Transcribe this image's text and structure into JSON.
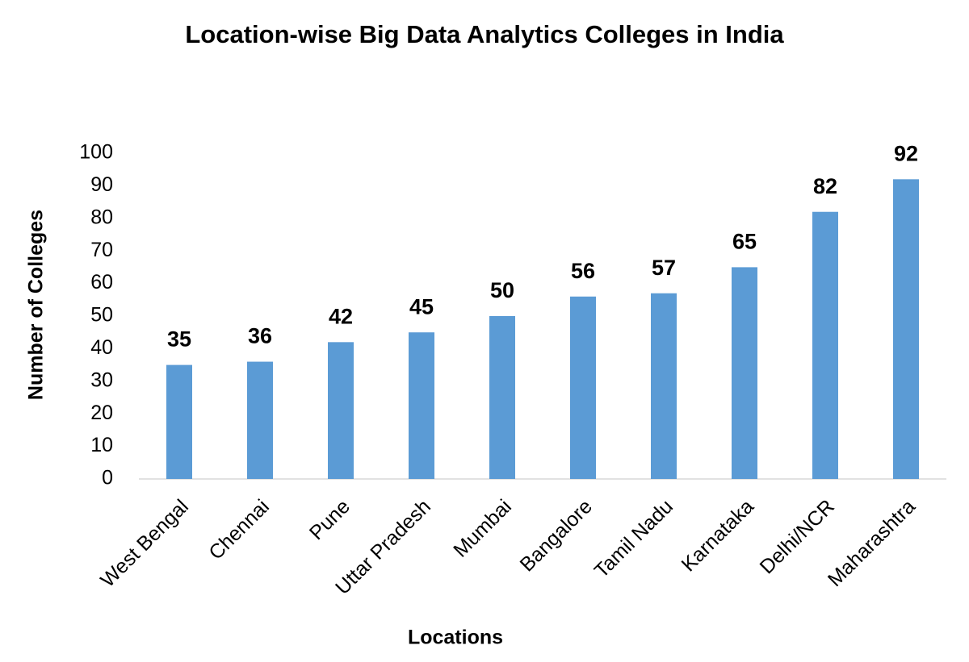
{
  "chart_data": {
    "type": "bar",
    "title": "Location-wise Big Data Analytics Colleges in India",
    "x_label": "Locations",
    "y_label": "Number of Colleges",
    "categories": [
      "West Bengal",
      "Chennai",
      "Pune",
      "Uttar Pradesh",
      "Mumbai",
      "Bangalore",
      "Tamil Nadu",
      "Karnataka",
      "Delhi/NCR",
      "Maharashtra"
    ],
    "values": [
      35,
      36,
      42,
      45,
      50,
      56,
      57,
      65,
      82,
      92
    ],
    "color": "#5b9bd5",
    "ylim": [
      0,
      100
    ],
    "yticks": [
      0,
      10,
      20,
      30,
      40,
      50,
      60,
      70,
      80,
      90,
      100
    ],
    "grid": false,
    "data_labels": true
  }
}
